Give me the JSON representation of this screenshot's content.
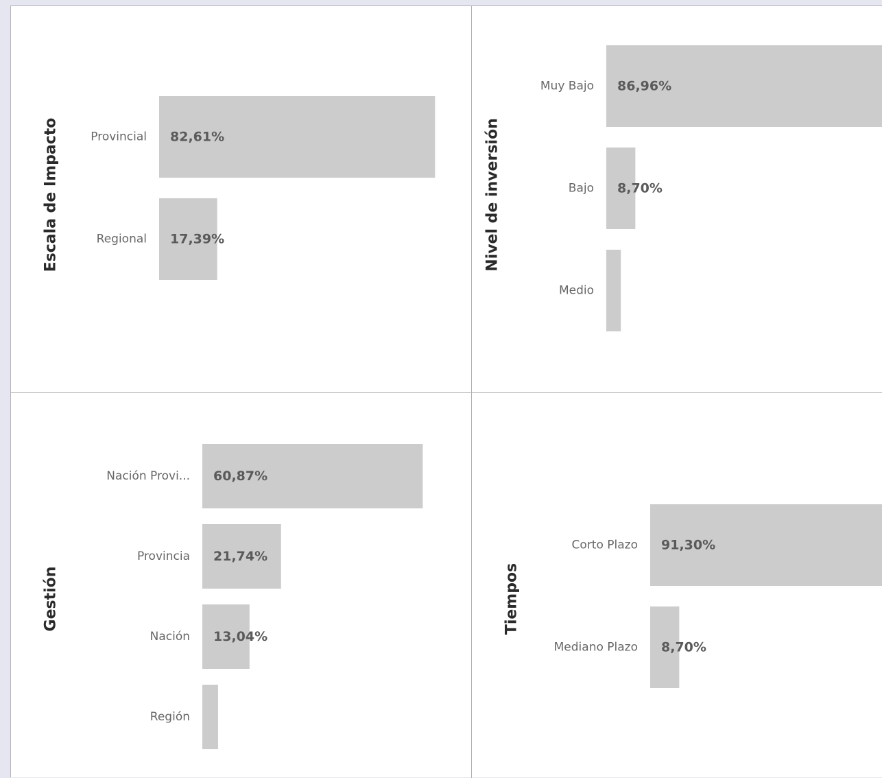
{
  "colors": {
    "bar": "#cccccc",
    "background": "#ffffff",
    "page": "#e6e6f0"
  },
  "chart_data": [
    {
      "type": "bar",
      "orientation": "horizontal",
      "ylabel": "Escala de Impacto",
      "categories": [
        "Provincial",
        "Regional"
      ],
      "values": [
        82.61,
        17.39
      ],
      "data_labels": [
        "82,61%",
        "17,39%"
      ],
      "grid": false
    },
    {
      "type": "bar",
      "orientation": "horizontal",
      "ylabel": "Nivel de inversión",
      "categories": [
        "Muy Bajo",
        "Bajo",
        "Medio"
      ],
      "values": [
        86.96,
        8.7,
        4.35
      ],
      "data_labels": [
        "86,96%",
        "8,70%",
        ""
      ],
      "grid": false
    },
    {
      "type": "bar",
      "orientation": "horizontal",
      "ylabel": "Gestión",
      "categories": [
        "Nación Provi...",
        "Provincia",
        "Nación",
        "Región"
      ],
      "values": [
        60.87,
        21.74,
        13.04,
        4.35
      ],
      "data_labels": [
        "60,87%",
        "21,74%",
        "13,04%",
        ""
      ],
      "grid": false
    },
    {
      "type": "bar",
      "orientation": "horizontal",
      "ylabel": "Tiempos",
      "categories": [
        "Corto Plazo",
        "Mediano Plazo"
      ],
      "values": [
        91.3,
        8.7
      ],
      "data_labels": [
        "91,30%",
        "8,70%"
      ],
      "grid": false
    }
  ]
}
